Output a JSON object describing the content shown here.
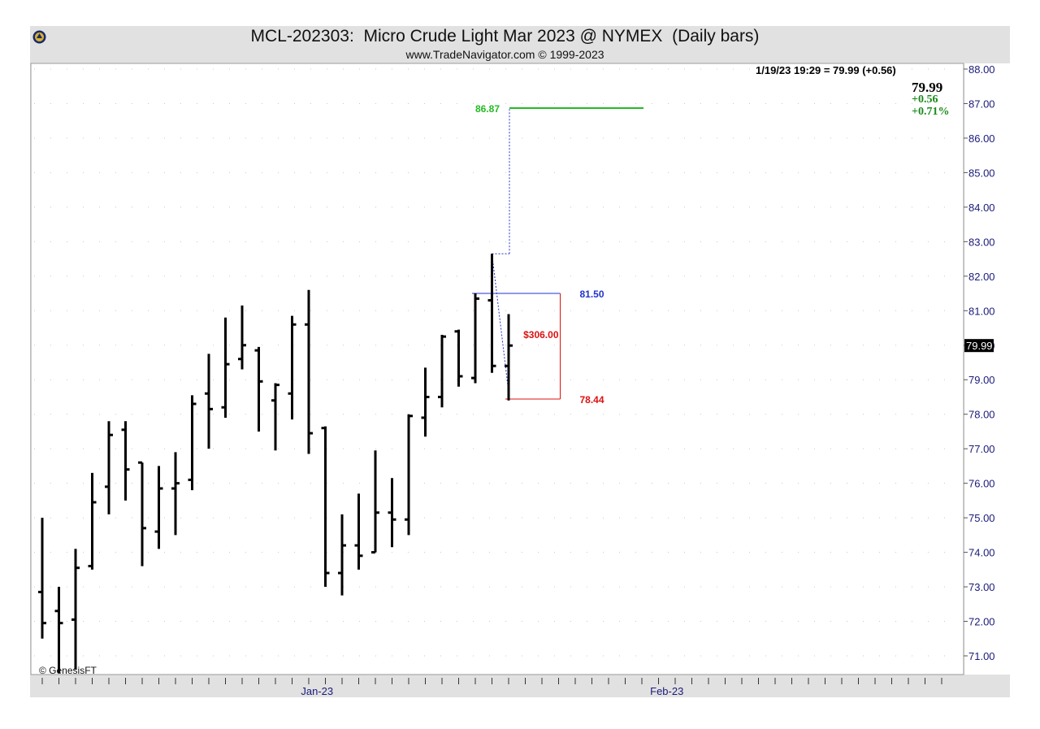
{
  "header": {
    "title": "MCL-202303:  Micro Crude Light Mar 2023 @ NYMEX  (Daily bars)",
    "subtitle": "www.TradeNavigator.com © 1999-2023"
  },
  "quote": {
    "line": "1/19/23 19:29 = 79.99 (+0.56)",
    "last": "79.99",
    "change": "+0.56",
    "percent": "+0.71%",
    "axis_tag": "79.99"
  },
  "copyright": "© GenesisFT",
  "colors": {
    "bars": "#000000",
    "target_line": "#22bb22",
    "entry_line": "#2233cc",
    "stop_line": "#dd1111",
    "axis_text": "#1a1a7a",
    "quote_green": "#1a8a1a"
  },
  "chart_data": {
    "type": "ohlc",
    "title": "MCL-202303:  Micro Crude Light Mar 2023 @ NYMEX  (Daily bars)",
    "ylim": [
      70.5,
      88.2
    ],
    "y_ticks": [
      "88.00",
      "87.00",
      "86.00",
      "85.00",
      "84.00",
      "83.00",
      "82.00",
      "81.00",
      "80.00",
      "79.00",
      "78.00",
      "77.00",
      "76.00",
      "75.00",
      "74.00",
      "73.00",
      "72.00",
      "71.00"
    ],
    "x_labels": [
      {
        "text": "Jan-23",
        "index": 16.5
      },
      {
        "text": "Feb-23",
        "index": 37.5
      }
    ],
    "bars": [
      {
        "o": 72.85,
        "h": 75.0,
        "l": 71.5,
        "c": 71.95
      },
      {
        "o": 72.3,
        "h": 73.0,
        "l": 70.5,
        "c": 71.95
      },
      {
        "o": 72.05,
        "h": 74.1,
        "l": 70.6,
        "c": 73.55
      },
      {
        "o": 73.6,
        "h": 76.3,
        "l": 73.5,
        "c": 75.45
      },
      {
        "o": 75.9,
        "h": 77.8,
        "l": 75.1,
        "c": 77.4
      },
      {
        "o": 77.55,
        "h": 77.8,
        "l": 75.5,
        "c": 76.4
      },
      {
        "o": 76.6,
        "h": 76.6,
        "l": 73.6,
        "c": 74.7
      },
      {
        "o": 74.6,
        "h": 76.5,
        "l": 74.1,
        "c": 75.85
      },
      {
        "o": 75.85,
        "h": 76.9,
        "l": 74.5,
        "c": 76.0
      },
      {
        "o": 76.1,
        "h": 78.55,
        "l": 75.8,
        "c": 78.3
      },
      {
        "o": 78.6,
        "h": 79.75,
        "l": 77.0,
        "c": 78.15
      },
      {
        "o": 78.2,
        "h": 80.8,
        "l": 77.9,
        "c": 79.45
      },
      {
        "o": 79.6,
        "h": 81.15,
        "l": 79.3,
        "c": 80.0
      },
      {
        "o": 79.85,
        "h": 79.95,
        "l": 77.5,
        "c": 78.95
      },
      {
        "o": 78.4,
        "h": 78.9,
        "l": 76.95,
        "c": 78.85
      },
      {
        "o": 78.6,
        "h": 80.85,
        "l": 77.85,
        "c": 80.6
      },
      {
        "o": 80.6,
        "h": 81.6,
        "l": 76.85,
        "c": 77.45
      },
      {
        "o": 77.6,
        "h": 77.65,
        "l": 73.0,
        "c": 73.4
      },
      {
        "o": 73.4,
        "h": 75.1,
        "l": 72.75,
        "c": 74.2
      },
      {
        "o": 74.2,
        "h": 75.7,
        "l": 73.5,
        "c": 73.9
      },
      {
        "o": 74.0,
        "h": 76.95,
        "l": 74.0,
        "c": 75.15
      },
      {
        "o": 75.15,
        "h": 76.15,
        "l": 74.15,
        "c": 74.95
      },
      {
        "o": 74.95,
        "h": 78.0,
        "l": 74.5,
        "c": 77.95
      },
      {
        "o": 77.9,
        "h": 79.35,
        "l": 77.35,
        "c": 78.5
      },
      {
        "o": 78.5,
        "h": 80.3,
        "l": 78.2,
        "c": 80.25
      },
      {
        "o": 80.4,
        "h": 80.45,
        "l": 78.8,
        "c": 79.1
      },
      {
        "o": 79.05,
        "h": 81.5,
        "l": 78.9,
        "c": 81.35
      },
      {
        "o": 81.3,
        "h": 82.65,
        "l": 79.2,
        "c": 79.4
      },
      {
        "o": 79.4,
        "h": 80.9,
        "l": 78.4,
        "c": 79.99
      }
    ],
    "annotations": [
      {
        "label": "86.87",
        "price": 86.87,
        "kind": "target",
        "x_start": 28,
        "x_end": 36
      },
      {
        "label": "81.50",
        "price": 81.5,
        "kind": "entry",
        "x_start": 26,
        "x_end": 31
      },
      {
        "label": "78.44",
        "price": 78.44,
        "kind": "stop",
        "x_start": 28,
        "x_end": 31
      },
      {
        "label": "$306.00",
        "kind": "risk",
        "from": 81.5,
        "to": 78.44,
        "x": 31
      }
    ],
    "projection": {
      "high": 82.65,
      "target": 86.87,
      "bar_index": 28
    }
  }
}
